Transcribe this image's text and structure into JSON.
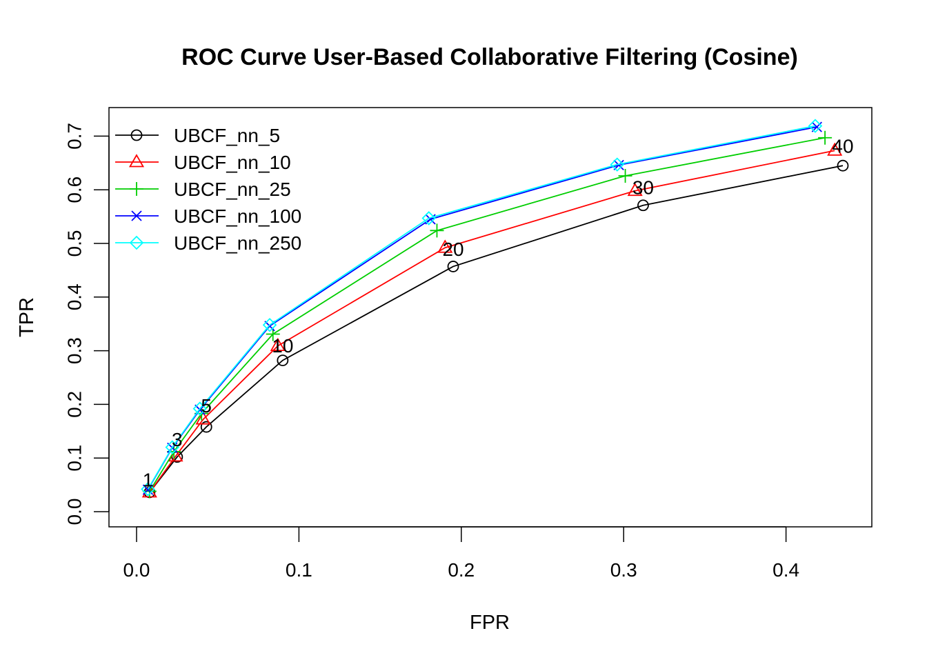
{
  "chart_data": {
    "type": "line",
    "title": "ROC Curve User-Based Collaborative Filtering (Cosine)",
    "xlabel": "FPR",
    "ylabel": "TPR",
    "xlim": [
      0,
      0.45
    ],
    "ylim": [
      0,
      0.7
    ],
    "x_ticks": [
      "0.0",
      "0.1",
      "0.2",
      "0.3",
      "0.4"
    ],
    "y_ticks": [
      "0.0",
      "0.1",
      "0.2",
      "0.3",
      "0.4",
      "0.5",
      "0.6",
      "0.7"
    ],
    "grid": false,
    "legend_position": "top-left",
    "series": [
      {
        "name": "UBCF_nn_5",
        "color": "#000000",
        "marker": "circle",
        "x": [
          0.008,
          0.025,
          0.043,
          0.09,
          0.195,
          0.312,
          0.435
        ],
        "y": [
          0.036,
          0.102,
          0.158,
          0.282,
          0.457,
          0.571,
          0.645
        ]
      },
      {
        "name": "UBCF_nn_10",
        "color": "#ff0000",
        "marker": "triangle",
        "x": [
          0.008,
          0.024,
          0.041,
          0.087,
          0.19,
          0.307,
          0.43
        ],
        "y": [
          0.036,
          0.103,
          0.172,
          0.309,
          0.492,
          0.598,
          0.673
        ]
      },
      {
        "name": "UBCF_nn_25",
        "color": "#00cd00",
        "marker": "plus",
        "x": [
          0.008,
          0.023,
          0.04,
          0.084,
          0.185,
          0.301,
          0.424
        ],
        "y": [
          0.038,
          0.112,
          0.183,
          0.331,
          0.524,
          0.626,
          0.697
        ]
      },
      {
        "name": "UBCF_nn_100",
        "color": "#0000ff",
        "marker": "cross",
        "x": [
          0.007,
          0.022,
          0.039,
          0.082,
          0.181,
          0.297,
          0.419
        ],
        "y": [
          0.041,
          0.119,
          0.19,
          0.346,
          0.545,
          0.646,
          0.717
        ]
      },
      {
        "name": "UBCF_nn_250",
        "color": "#00ffff",
        "marker": "diamond",
        "x": [
          0.007,
          0.022,
          0.039,
          0.082,
          0.18,
          0.296,
          0.418
        ],
        "y": [
          0.042,
          0.12,
          0.192,
          0.348,
          0.547,
          0.647,
          0.719
        ]
      }
    ],
    "point_labels": [
      {
        "text": "1",
        "x": 0.007,
        "y": 0.06
      },
      {
        "text": "3",
        "x": 0.025,
        "y": 0.135
      },
      {
        "text": "5",
        "x": 0.043,
        "y": 0.198
      },
      {
        "text": "10",
        "x": 0.09,
        "y": 0.31
      },
      {
        "text": "20",
        "x": 0.195,
        "y": 0.49
      },
      {
        "text": "30",
        "x": 0.312,
        "y": 0.605
      },
      {
        "text": "40",
        "x": 0.435,
        "y": 0.682
      }
    ]
  }
}
